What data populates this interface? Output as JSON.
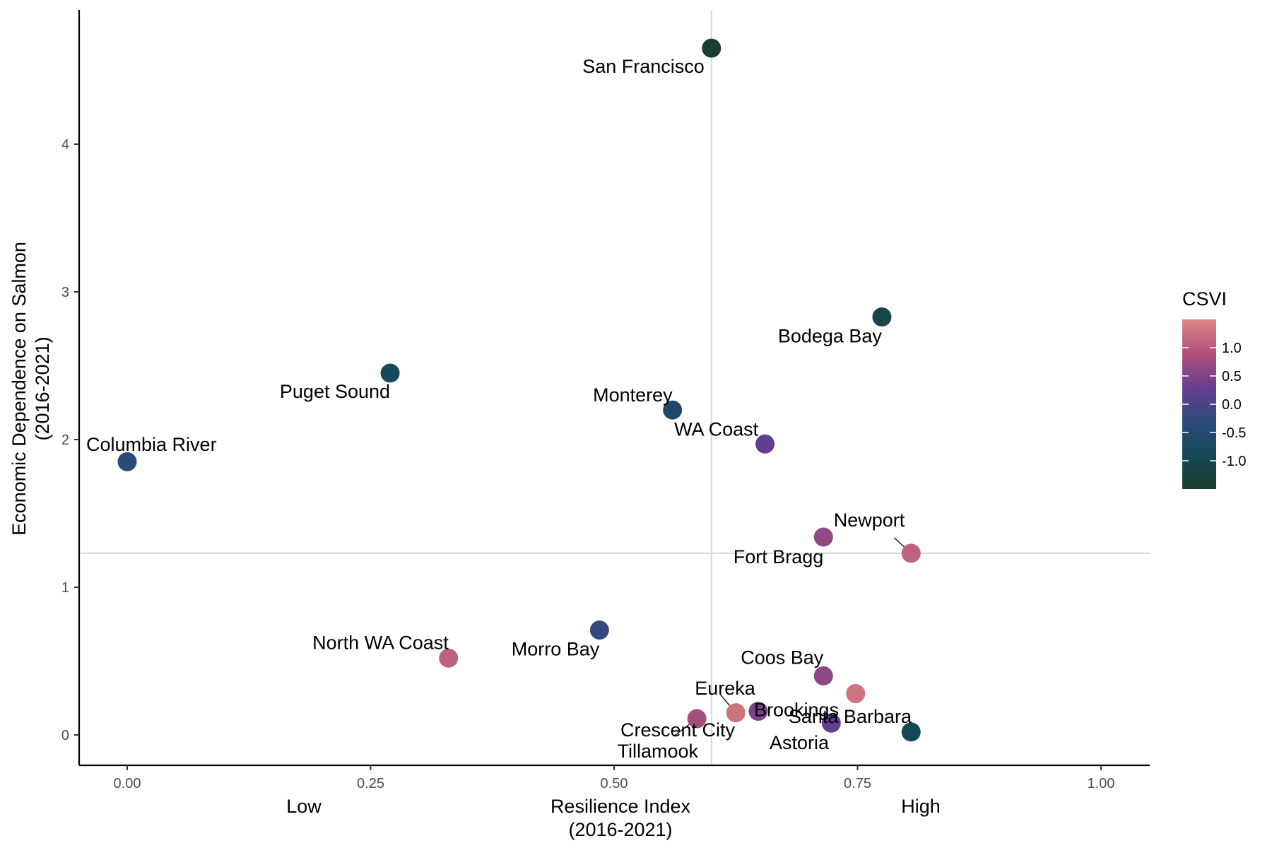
{
  "chart_data": {
    "type": "scatter",
    "xlabel": "Resilience Index\n(2016-2021)",
    "ylabel": "Economic Dependence on Salmon\n(2016-2021)",
    "x_qualitative_labels": [
      "Low",
      "High"
    ],
    "xlim": [
      -0.05,
      1.05
    ],
    "ylim": [
      -0.2,
      4.8
    ],
    "x_ticks": [
      "0.00",
      "0.25",
      "0.50",
      "0.75",
      "1.00"
    ],
    "x_tick_values": [
      0.0,
      0.25,
      0.5,
      0.75,
      1.0
    ],
    "y_ticks": [
      "0",
      "1",
      "2",
      "3",
      "4"
    ],
    "y_tick_values": [
      0,
      1,
      2,
      3,
      4
    ],
    "reference_lines": {
      "x": 0.6,
      "y": 1.23
    },
    "grid": false,
    "legend": {
      "title": "CSVI",
      "placement": "right",
      "range": [
        -1.5,
        1.5
      ],
      "ticks": [
        "1.0",
        "0.5",
        "0.0",
        "-0.5",
        "-1.0"
      ],
      "tick_values": [
        1.0,
        0.5,
        0.0,
        -0.5,
        -1.0
      ],
      "colors": [
        "#dd8584",
        "#b0517c",
        "#6a3e90",
        "#2c4a7c",
        "#154a58",
        "#1a3a2a"
      ]
    },
    "points": [
      {
        "label": "San Francisco",
        "x": 0.6,
        "y": 4.65,
        "csvi": -1.35
      },
      {
        "label": "Bodega Bay",
        "x": 0.775,
        "y": 2.83,
        "csvi": -1.1
      },
      {
        "label": "Puget Sound",
        "x": 0.27,
        "y": 2.45,
        "csvi": -0.85
      },
      {
        "label": "Monterey",
        "x": 0.56,
        "y": 2.2,
        "csvi": -0.65
      },
      {
        "label": "WA Coast",
        "x": 0.655,
        "y": 1.97,
        "csvi": 0.2
      },
      {
        "label": "Columbia River",
        "x": 0.0,
        "y": 1.85,
        "csvi": -0.4
      },
      {
        "label": "Fort Bragg",
        "x": 0.715,
        "y": 1.34,
        "csvi": 0.65
      },
      {
        "label": "Newport",
        "x": 0.805,
        "y": 1.23,
        "csvi": 1.1
      },
      {
        "label": "Morro Bay",
        "x": 0.485,
        "y": 0.71,
        "csvi": -0.2
      },
      {
        "label": "North WA Coast",
        "x": 0.33,
        "y": 0.52,
        "csvi": 1.1
      },
      {
        "label": "Coos Bay",
        "x": 0.715,
        "y": 0.4,
        "csvi": 0.6
      },
      {
        "label": "Santa Barbara",
        "x": 0.748,
        "y": 0.28,
        "csvi": 1.3
      },
      {
        "label": "Eureka",
        "x": 0.625,
        "y": 0.15,
        "csvi": 1.3
      },
      {
        "label": "Brookings",
        "x": 0.648,
        "y": 0.16,
        "csvi": 0.45
      },
      {
        "label": "Crescent City",
        "x": 0.585,
        "y": 0.11,
        "csvi": 0.8
      },
      {
        "label": "Astoria",
        "x": 0.723,
        "y": 0.08,
        "csvi": 0.25
      },
      {
        "label": "Tillamook",
        "x": 0.805,
        "y": 0.02,
        "csvi": -0.95
      }
    ]
  }
}
